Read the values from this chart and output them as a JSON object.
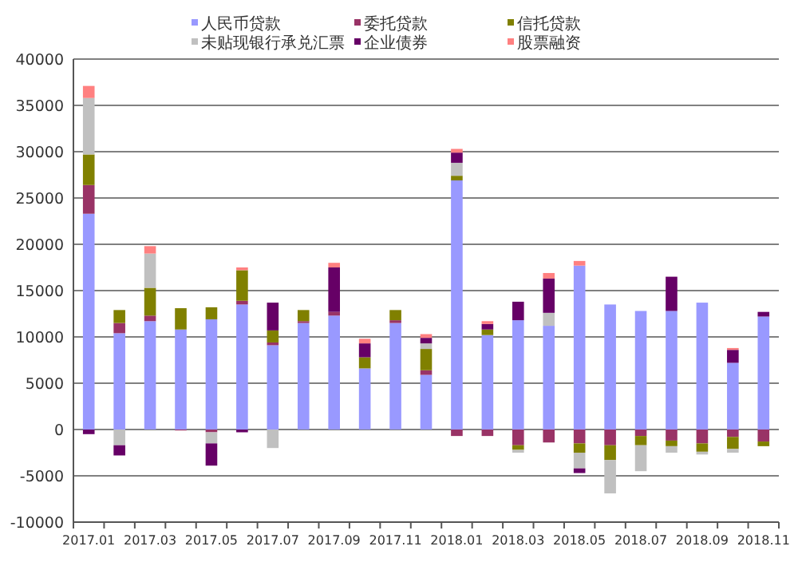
{
  "chart_data": {
    "type": "bar",
    "stacked": true,
    "grid": "y",
    "legend": "top",
    "categories": [
      "2017.01",
      null,
      "2017.03",
      null,
      "2017.05",
      null,
      "2017.07",
      null,
      "2017.09",
      null,
      "2017.11",
      null,
      "2018.01",
      null,
      "2018.03",
      null,
      "2018.05",
      null,
      "2018.07",
      null,
      "2018.09",
      null,
      "2018.11"
    ],
    "ylim": [
      -10000,
      40000
    ],
    "yticks": [
      -10000,
      -5000,
      0,
      5000,
      10000,
      15000,
      20000,
      25000,
      30000,
      35000,
      40000
    ],
    "series": [
      {
        "name": "人民币贷款",
        "color": "#9999ff",
        "values": [
          23300,
          10400,
          11700,
          10800,
          11900,
          13500,
          9100,
          11500,
          12300,
          6600,
          11500,
          5900,
          26900,
          10200,
          11800,
          11200,
          17700,
          13500,
          12800,
          12800,
          13700,
          7200,
          12200
        ]
      },
      {
        "name": "委托贷款",
        "color": "#993366",
        "values": [
          3100,
          1100,
          600,
          -100,
          -300,
          400,
          300,
          200,
          400,
          0,
          300,
          500,
          -700,
          -700,
          -1700,
          -1400,
          -1500,
          -1700,
          -700,
          -1200,
          -1500,
          -800,
          -1300
        ]
      },
      {
        "name": "信托贷款",
        "color": "#808000",
        "values": [
          3300,
          1400,
          3000,
          2300,
          1300,
          3300,
          1300,
          1200,
          0,
          1200,
          1100,
          2300,
          500,
          600,
          -500,
          0,
          -1000,
          -1600,
          -1000,
          -600,
          -900,
          -1300,
          -500
        ]
      },
      {
        "name": "未贴现银行承兑汇票",
        "color": "#c0c0c0",
        "values": [
          6100,
          -1700,
          3700,
          0,
          -1200,
          0,
          -2000,
          null,
          0,
          0,
          0,
          600,
          1400,
          0,
          -300,
          1400,
          -1700,
          -3600,
          -2800,
          -700,
          -300,
          -400,
          null
        ]
      },
      {
        "name": "企业债券",
        "color": "#660066",
        "values": [
          -500,
          -1100,
          0,
          0,
          -2400,
          -300,
          3000,
          0,
          4800,
          1500,
          0,
          600,
          1100,
          600,
          2000,
          3700,
          -500,
          0,
          0,
          3700,
          0,
          1400,
          500
        ]
      },
      {
        "name": "股票融资",
        "color": "#ff8080",
        "values": [
          1300,
          0,
          800,
          0,
          0,
          300,
          0,
          0,
          500,
          500,
          0,
          400,
          400,
          300,
          0,
          600,
          500,
          0,
          0,
          0,
          0,
          200,
          0
        ]
      }
    ]
  }
}
